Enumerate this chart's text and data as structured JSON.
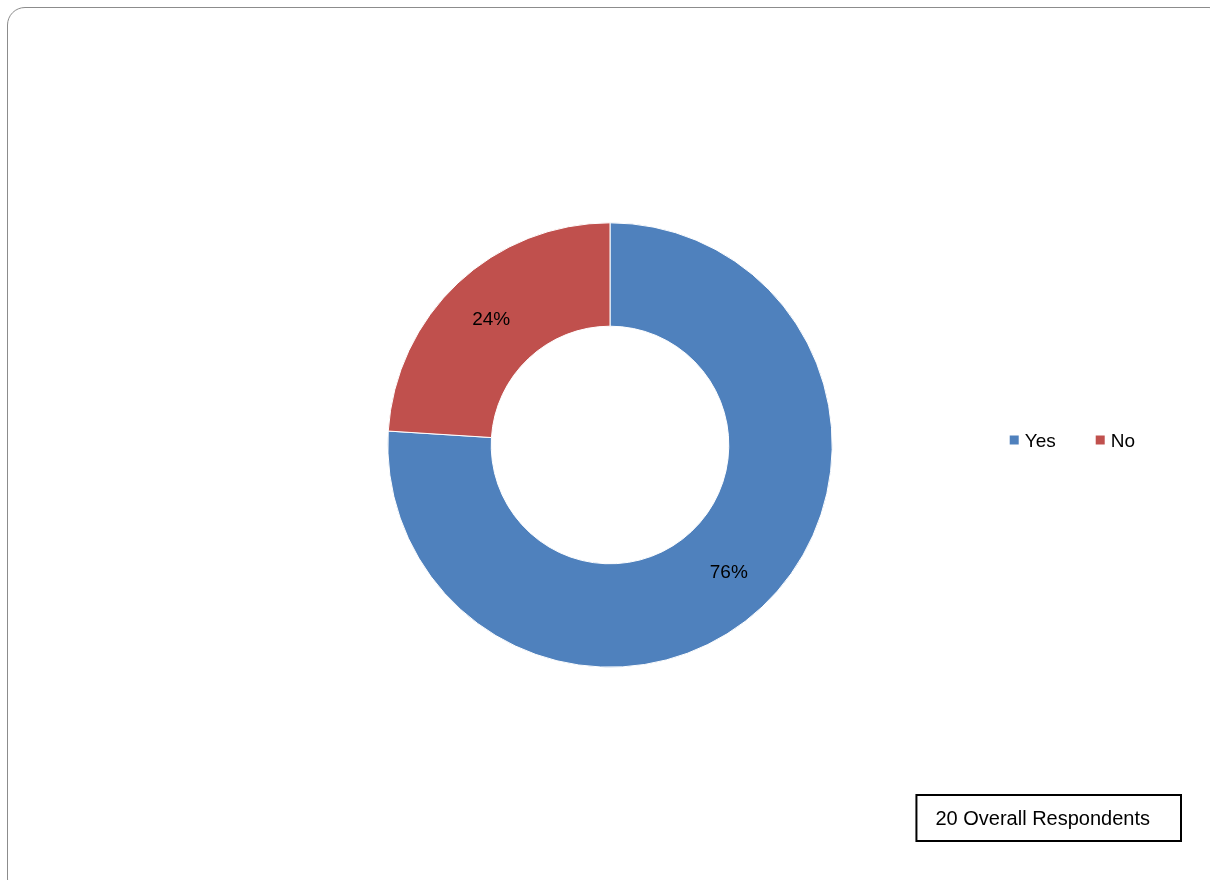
{
  "chart_data": {
    "type": "donut",
    "categories": [
      "Yes",
      "No"
    ],
    "values": [
      76,
      24
    ],
    "colors": [
      "#4f81bd",
      "#c0504d"
    ],
    "value_labels": [
      "76%",
      "24%"
    ],
    "legend": "right",
    "annotations": [
      "20 Overall Respondents"
    ]
  }
}
